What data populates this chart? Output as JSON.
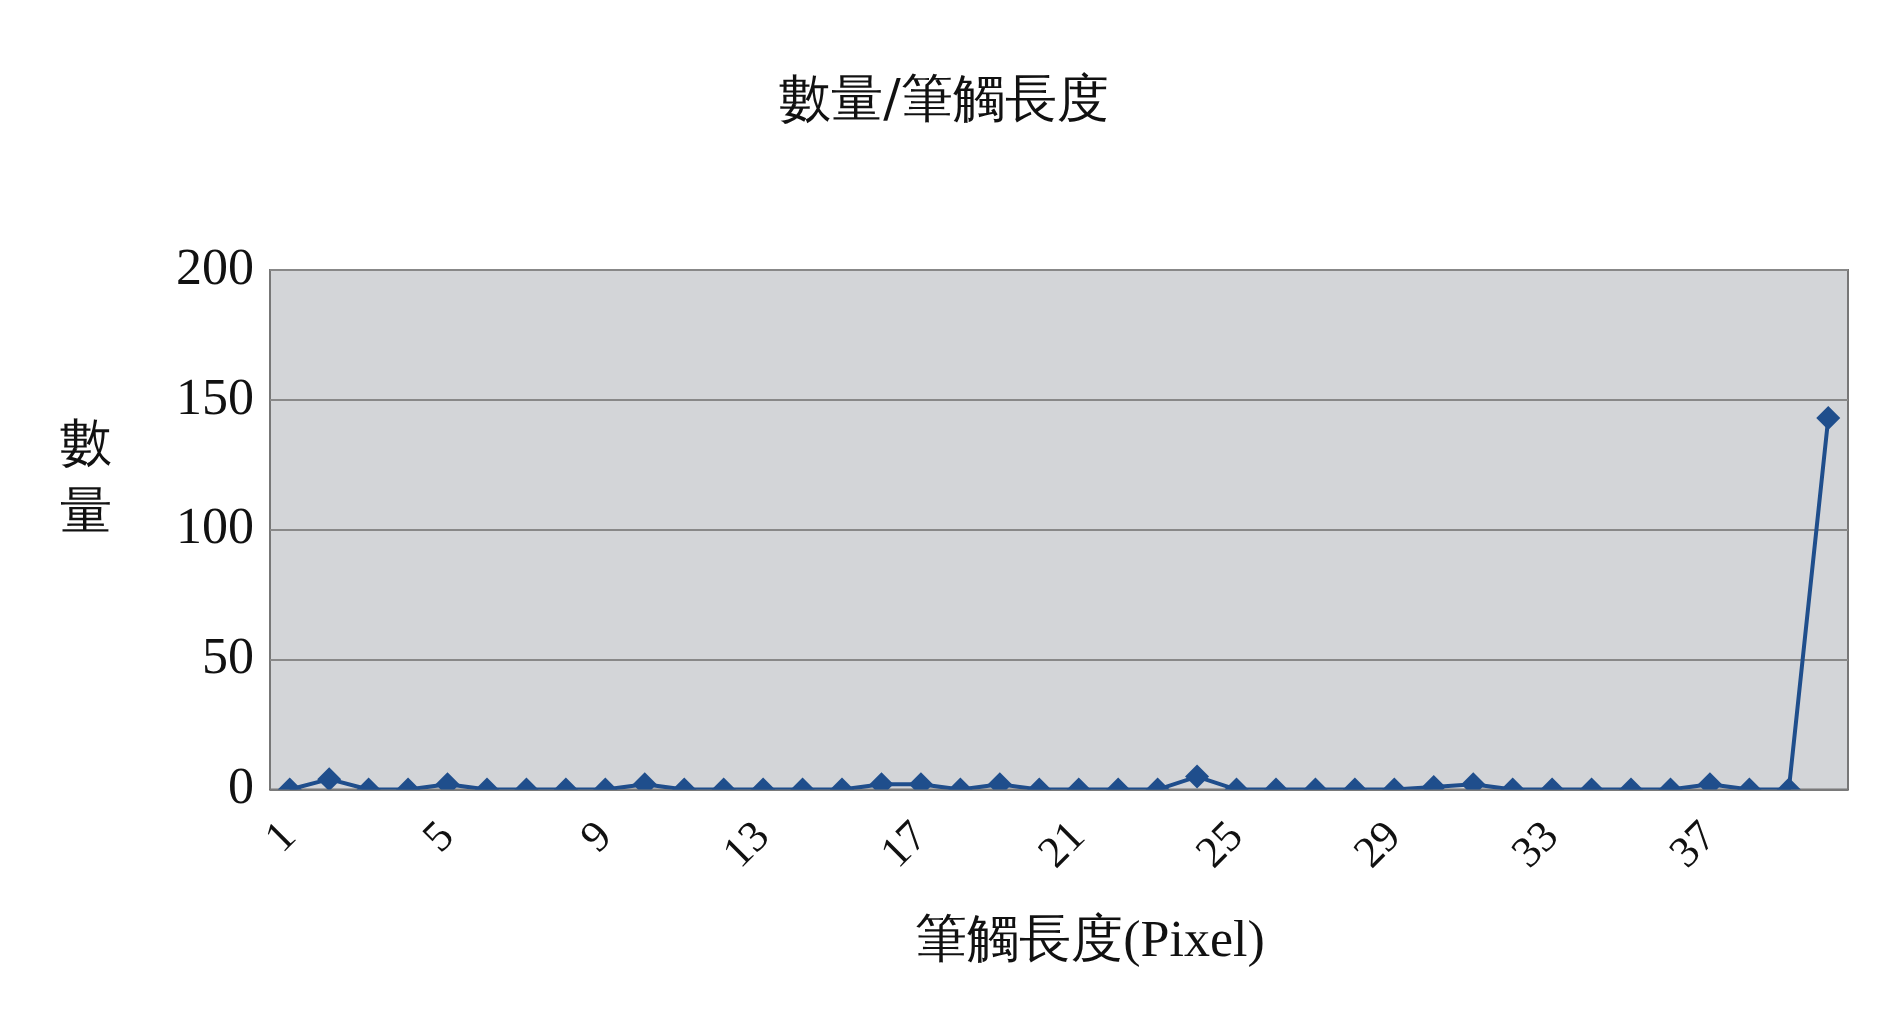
{
  "chart_data": {
    "type": "line",
    "title": "數量/筆觸長度",
    "xlabel": "筆觸長度(Pixel)",
    "ylabel": "數量",
    "categories": [
      "1",
      null,
      null,
      null,
      "5",
      null,
      null,
      null,
      "9",
      null,
      null,
      null,
      "13",
      null,
      null,
      null,
      "17",
      null,
      null,
      null,
      "21",
      null,
      null,
      null,
      "25",
      null,
      null,
      null,
      "29",
      null,
      null,
      null,
      "33",
      null,
      null,
      null,
      "37",
      null,
      null,
      null
    ],
    "series": [
      {
        "color": "#1f4e8c",
        "values": [
          0,
          4,
          0,
          0,
          2,
          0,
          0,
          0,
          0,
          2,
          0,
          0,
          0,
          0,
          0,
          2,
          2,
          0,
          2,
          0,
          0,
          0,
          0,
          5,
          0,
          0,
          0,
          0,
          0,
          1,
          2,
          0,
          0,
          0,
          0,
          0,
          2,
          0,
          0,
          143
        ]
      }
    ],
    "ylim": [
      0,
      200
    ],
    "yticks": [
      0,
      50,
      100,
      150,
      200
    ],
    "grid": "y",
    "legend": false,
    "marker": "diamond",
    "line_style": "solid"
  }
}
